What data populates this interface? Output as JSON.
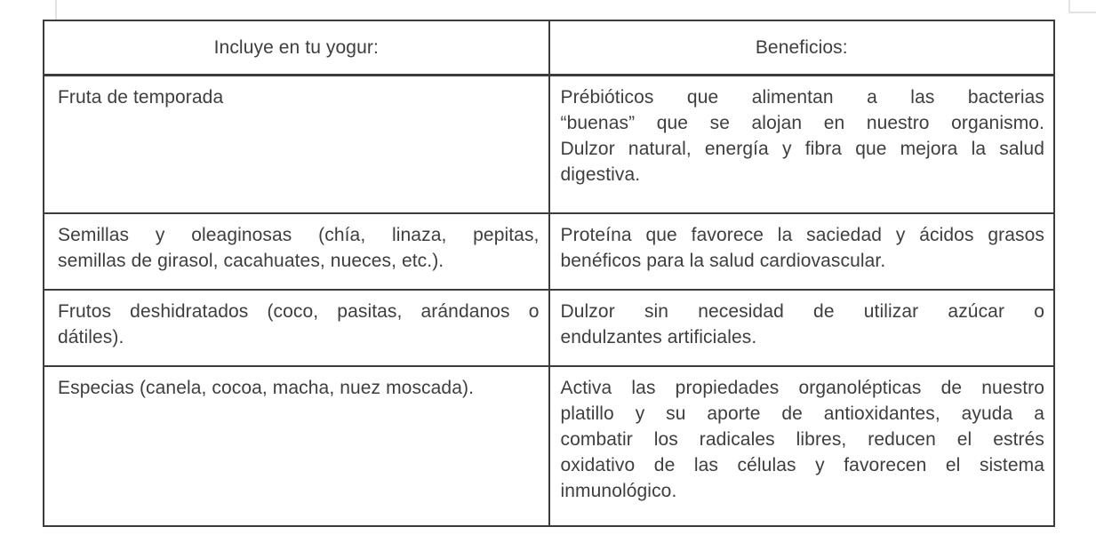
{
  "colors": {
    "border": "#3c3c3c",
    "text": "#3e3e3e",
    "background": "#ffffff",
    "page_edge": "#e2e2e2"
  },
  "table": {
    "header": {
      "include_label": "Incluye en tu yogur:",
      "benefit_label": "Beneficios:"
    },
    "rows": [
      {
        "include": "Fruta de temporada",
        "benefit": "Prébióticos que alimentan a las bacterias\n“buenas” que se alojan en nuestro organismo.\nDulzor natural, energía y fibra que mejora la salud\ndigestiva."
      },
      {
        "include": "Semillas y oleaginosas (chía, linaza, pepitas,\nsemillas de girasol, cacahuates, nueces, etc.).",
        "benefit": "Proteína que favorece la saciedad y ácidos grasos\nbenéficos para la salud cardiovascular."
      },
      {
        "include": "Frutos deshidratados (coco, pasitas, arándanos o\ndátiles).",
        "benefit": "Dulzor sin necesidad de utilizar azúcar o\nendulzantes artificiales."
      },
      {
        "include": "Especias (canela, cocoa, macha, nuez moscada).",
        "benefit": "Activa las propiedades organolépticas de nuestro\nplatillo y su aporte de antioxidantes, ayuda a\ncombatir los radicales libres, reducen el estrés\noxidativo de las células y favorecen el sistema\ninmunológico."
      }
    ]
  }
}
